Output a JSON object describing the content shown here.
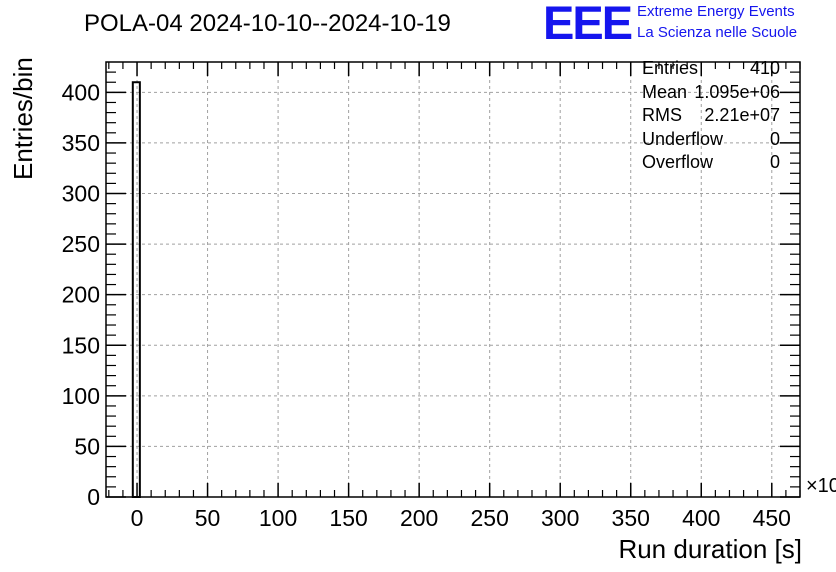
{
  "chart_data": {
    "type": "bar",
    "title": "POLA-04 2024-10-10--2024-10-19",
    "xlabel": "Run duration [s]",
    "ylabel": "Entries/bin",
    "x_multiplier": "×10",
    "xlim": [
      -22,
      470
    ],
    "ylim": [
      0,
      430
    ],
    "x_ticks": [
      0,
      50,
      100,
      150,
      200,
      250,
      300,
      350,
      400,
      450
    ],
    "y_ticks": [
      0,
      50,
      100,
      150,
      200,
      250,
      300,
      350,
      400
    ],
    "grid": true,
    "bins": [
      {
        "x_low": -3,
        "x_high": 2,
        "count": 410
      }
    ],
    "stats": [
      {
        "label": "Entries",
        "value": "410"
      },
      {
        "label": "Mean",
        "value": "1.095e+06"
      },
      {
        "label": "RMS",
        "value": "2.21e+07"
      },
      {
        "label": "Underflow",
        "value": "0"
      },
      {
        "label": "Overflow",
        "value": "0"
      }
    ]
  },
  "logo": {
    "mark": "EEE",
    "line1": "Extreme Energy Events",
    "line2": "La Scienza nelle Scuole"
  },
  "colors": {
    "logo": "#1515ee",
    "grid": "#a0a0a0",
    "axis": "#000000",
    "bar": "#000000"
  }
}
